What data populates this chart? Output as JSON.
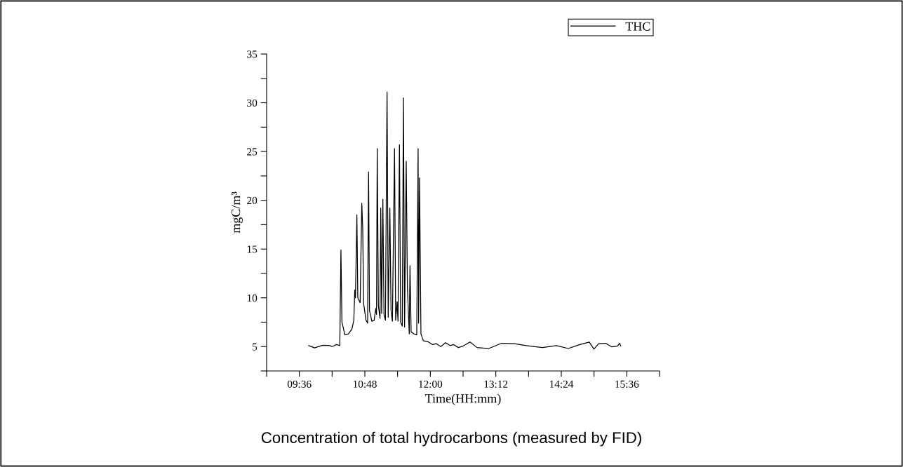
{
  "chart_data": {
    "type": "line",
    "title": "Concentration of total hydrocarbons (measured by FID)",
    "xlabel": "Time(HH:mm)",
    "ylabel": "mgC/m³",
    "xlim": [
      9.0,
      16.2
    ],
    "xticks": [
      {
        "value": 9.0,
        "label": null
      },
      {
        "value": 9.6,
        "label": "09:36"
      },
      {
        "value": 10.2,
        "label": null
      },
      {
        "value": 10.8,
        "label": "10:48"
      },
      {
        "value": 11.4,
        "label": null
      },
      {
        "value": 12.0,
        "label": "12:00"
      },
      {
        "value": 12.6,
        "label": null
      },
      {
        "value": 13.2,
        "label": "13:12"
      },
      {
        "value": 13.8,
        "label": null
      },
      {
        "value": 14.4,
        "label": "14:24"
      },
      {
        "value": 15.0,
        "label": null
      },
      {
        "value": 15.6,
        "label": "15:36"
      },
      {
        "value": 16.2,
        "label": null
      }
    ],
    "ylim": [
      2.5,
      35
    ],
    "yticks": [
      {
        "value": 2.5,
        "label": null
      },
      5,
      {
        "value": 7.5,
        "label": null
      },
      10,
      {
        "value": 12.5,
        "label": null
      },
      15,
      {
        "value": 17.5,
        "label": null
      },
      20,
      {
        "value": 22.5,
        "label": null
      },
      25,
      {
        "value": 27.5,
        "label": null
      },
      30,
      {
        "value": 32.5,
        "label": null
      },
      35
    ],
    "legend": "top right",
    "grid": false,
    "marker": "none",
    "line_style": "solid",
    "series": [
      {
        "name": "THC",
        "color": "#000000",
        "x": [
          9.771,
          9.878,
          10.028,
          10.157,
          10.2,
          10.285,
          10.341,
          10.362,
          10.38,
          10.435,
          10.5,
          10.564,
          10.598,
          10.615,
          10.628,
          10.654,
          10.671,
          10.714,
          10.744,
          10.761,
          10.778,
          10.821,
          10.851,
          10.859,
          10.868,
          10.885,
          10.928,
          10.971,
          11.0,
          11.014,
          11.027,
          11.048,
          11.078,
          11.091,
          11.108,
          11.13,
          11.151,
          11.177,
          11.207,
          11.228,
          11.258,
          11.28,
          11.305,
          11.344,
          11.365,
          11.391,
          11.408,
          11.434,
          11.456,
          11.486,
          11.507,
          11.528,
          11.558,
          11.58,
          11.601,
          11.614,
          11.627,
          11.648,
          11.7,
          11.751,
          11.776,
          11.785,
          11.802,
          11.828,
          11.871,
          11.956,
          12.042,
          12.106,
          12.192,
          12.278,
          12.363,
          12.428,
          12.513,
          12.6,
          12.727,
          12.856,
          13.07,
          13.306,
          13.54,
          13.756,
          14.055,
          14.312,
          14.527,
          14.74,
          14.913,
          14.998,
          15.084,
          15.212,
          15.32,
          15.427,
          15.47,
          15.49
        ],
        "values": [
          5.1,
          4.86,
          5.14,
          5.1,
          5.0,
          5.2,
          5.1,
          14.9,
          7.5,
          6.2,
          6.3,
          6.8,
          7.7,
          10.8,
          10.0,
          18.5,
          10.0,
          9.5,
          19.7,
          17.1,
          9.4,
          7.7,
          7.4,
          15.4,
          22.9,
          8.7,
          7.6,
          7.7,
          8.9,
          8.3,
          25.3,
          9.2,
          7.9,
          19.2,
          8.4,
          20.1,
          8.3,
          7.7,
          31.1,
          8.0,
          19.2,
          8.7,
          7.6,
          25.3,
          7.7,
          9.6,
          7.6,
          25.7,
          7.5,
          7.1,
          30.5,
          7.0,
          24.0,
          11.1,
          8.0,
          6.3,
          13.3,
          6.5,
          6.3,
          6.2,
          25.3,
          7.4,
          22.3,
          6.3,
          5.6,
          5.5,
          5.2,
          5.3,
          5.0,
          5.4,
          5.1,
          5.2,
          4.9,
          5.05,
          5.46,
          4.9,
          4.8,
          5.34,
          5.3,
          5.1,
          4.9,
          5.1,
          4.8,
          5.2,
          5.46,
          4.74,
          5.3,
          5.34,
          4.98,
          5.05,
          5.34,
          5.05
        ]
      }
    ]
  }
}
